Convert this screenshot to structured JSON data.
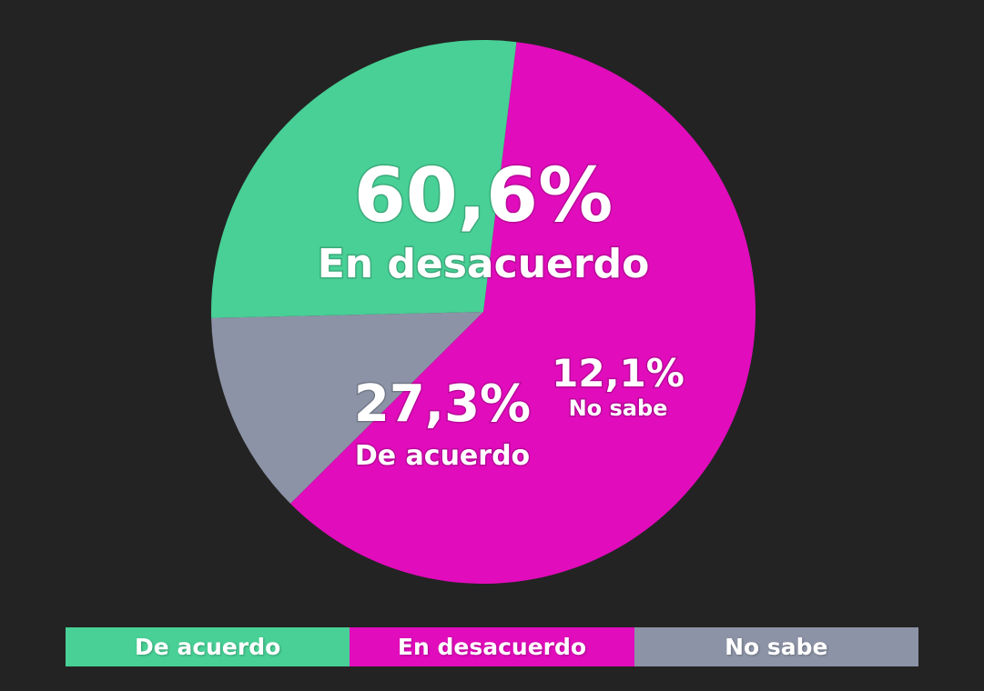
{
  "chart_data": {
    "type": "pie",
    "slices": [
      {
        "label": "En desacuerdo",
        "value": 60.6,
        "value_label": "60,6%",
        "color": "#e10cbb"
      },
      {
        "label": "No sabe",
        "value": 12.1,
        "value_label": "12,1%",
        "color": "#8c93a6"
      },
      {
        "label": "De acuerdo",
        "value": 27.3,
        "value_label": "27,3%",
        "color": "#48d096"
      }
    ],
    "legend": {
      "placement": "bottom",
      "items": [
        {
          "label": "De acuerdo",
          "color": "#48d096"
        },
        {
          "label": "En desacuerdo",
          "color": "#e10cbb"
        },
        {
          "label": "No sabe",
          "color": "#8c93a6"
        }
      ]
    }
  },
  "background": "#232323"
}
